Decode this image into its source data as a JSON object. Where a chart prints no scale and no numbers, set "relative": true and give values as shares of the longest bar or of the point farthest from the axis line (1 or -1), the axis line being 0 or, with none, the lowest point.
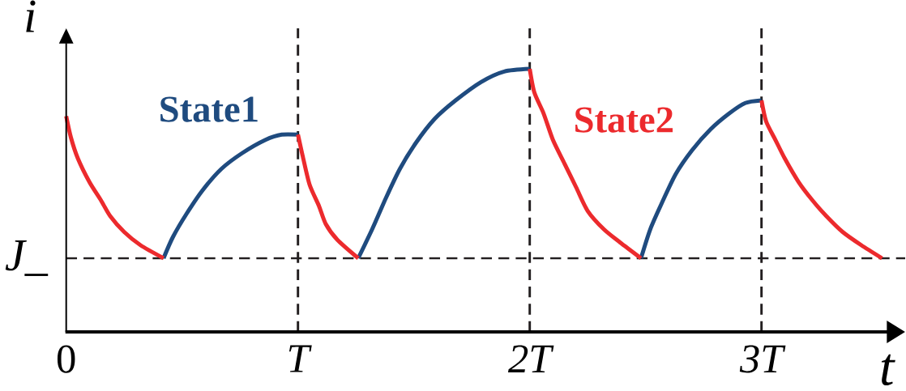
{
  "chart_data": {
    "type": "line",
    "xlabel": "t",
    "ylabel": "i",
    "relative": true,
    "line_style": "solid",
    "xlim": [
      0,
      3.62
    ],
    "xticks": [
      0,
      {
        "value": 1,
        "label": "T"
      },
      {
        "value": 2,
        "label": "2T"
      },
      {
        "value": 3,
        "label": "3T"
      }
    ],
    "ref_lines": [
      {
        "axis": "y",
        "value": 0.28,
        "label": "J_",
        "color": "#231f20",
        "line_style": "dashed"
      },
      {
        "axis": "x",
        "value": 1,
        "color": "#231f20",
        "line_style": "dashed"
      },
      {
        "axis": "x",
        "value": 2,
        "color": "#231f20",
        "line_style": "dashed"
      },
      {
        "axis": "x",
        "value": 3,
        "color": "#231f20",
        "line_style": "dashed"
      }
    ],
    "series": [
      {
        "name": "State1",
        "color": "#1f4b7f",
        "x": [
          0.42,
          0.46,
          0.52,
          0.59,
          0.67,
          0.76,
          0.86,
          0.93,
          1.0,
          1.13,
          1.26,
          1.32,
          1.38,
          1.44,
          1.51,
          1.59,
          1.68,
          1.79,
          1.89,
          2.0,
          2.24,
          2.48,
          2.52,
          2.57,
          2.63,
          2.7,
          2.78,
          2.86,
          2.93,
          3.0
        ],
        "values": [
          0.28,
          0.36,
          0.45,
          0.54,
          0.62,
          0.68,
          0.73,
          0.75,
          0.75,
          null,
          0.28,
          0.39,
          0.51,
          0.62,
          0.72,
          0.81,
          0.88,
          0.95,
          0.99,
          1.0,
          null,
          0.28,
          0.39,
          0.49,
          0.6,
          0.69,
          0.77,
          0.83,
          0.87,
          0.88
        ]
      },
      {
        "name": "State2",
        "color": "#ec2a2d",
        "x": [
          0,
          0.02,
          0.05,
          0.1,
          0.15,
          0.19,
          0.25,
          0.32,
          0.42,
          0.71,
          1.0,
          1.02,
          1.05,
          1.09,
          1.12,
          1.17,
          1.26,
          1.63,
          2.0,
          2.02,
          2.06,
          2.1,
          2.15,
          2.2,
          2.25,
          2.32,
          2.39,
          2.48,
          2.74,
          3.0,
          3.02,
          3.06,
          3.1,
          3.16,
          3.22,
          3.28,
          3.35,
          3.43,
          3.52
        ],
        "values": [
          0.82,
          0.74,
          0.66,
          0.57,
          0.5,
          0.44,
          0.38,
          0.33,
          0.28,
          null,
          0.75,
          0.67,
          0.56,
          0.48,
          0.41,
          0.35,
          0.28,
          null,
          1.0,
          0.91,
          0.83,
          0.73,
          0.64,
          0.55,
          0.46,
          0.39,
          0.34,
          0.28,
          null,
          0.88,
          0.8,
          0.73,
          0.66,
          0.57,
          0.5,
          0.44,
          0.38,
          0.33,
          0.28
        ]
      }
    ]
  }
}
